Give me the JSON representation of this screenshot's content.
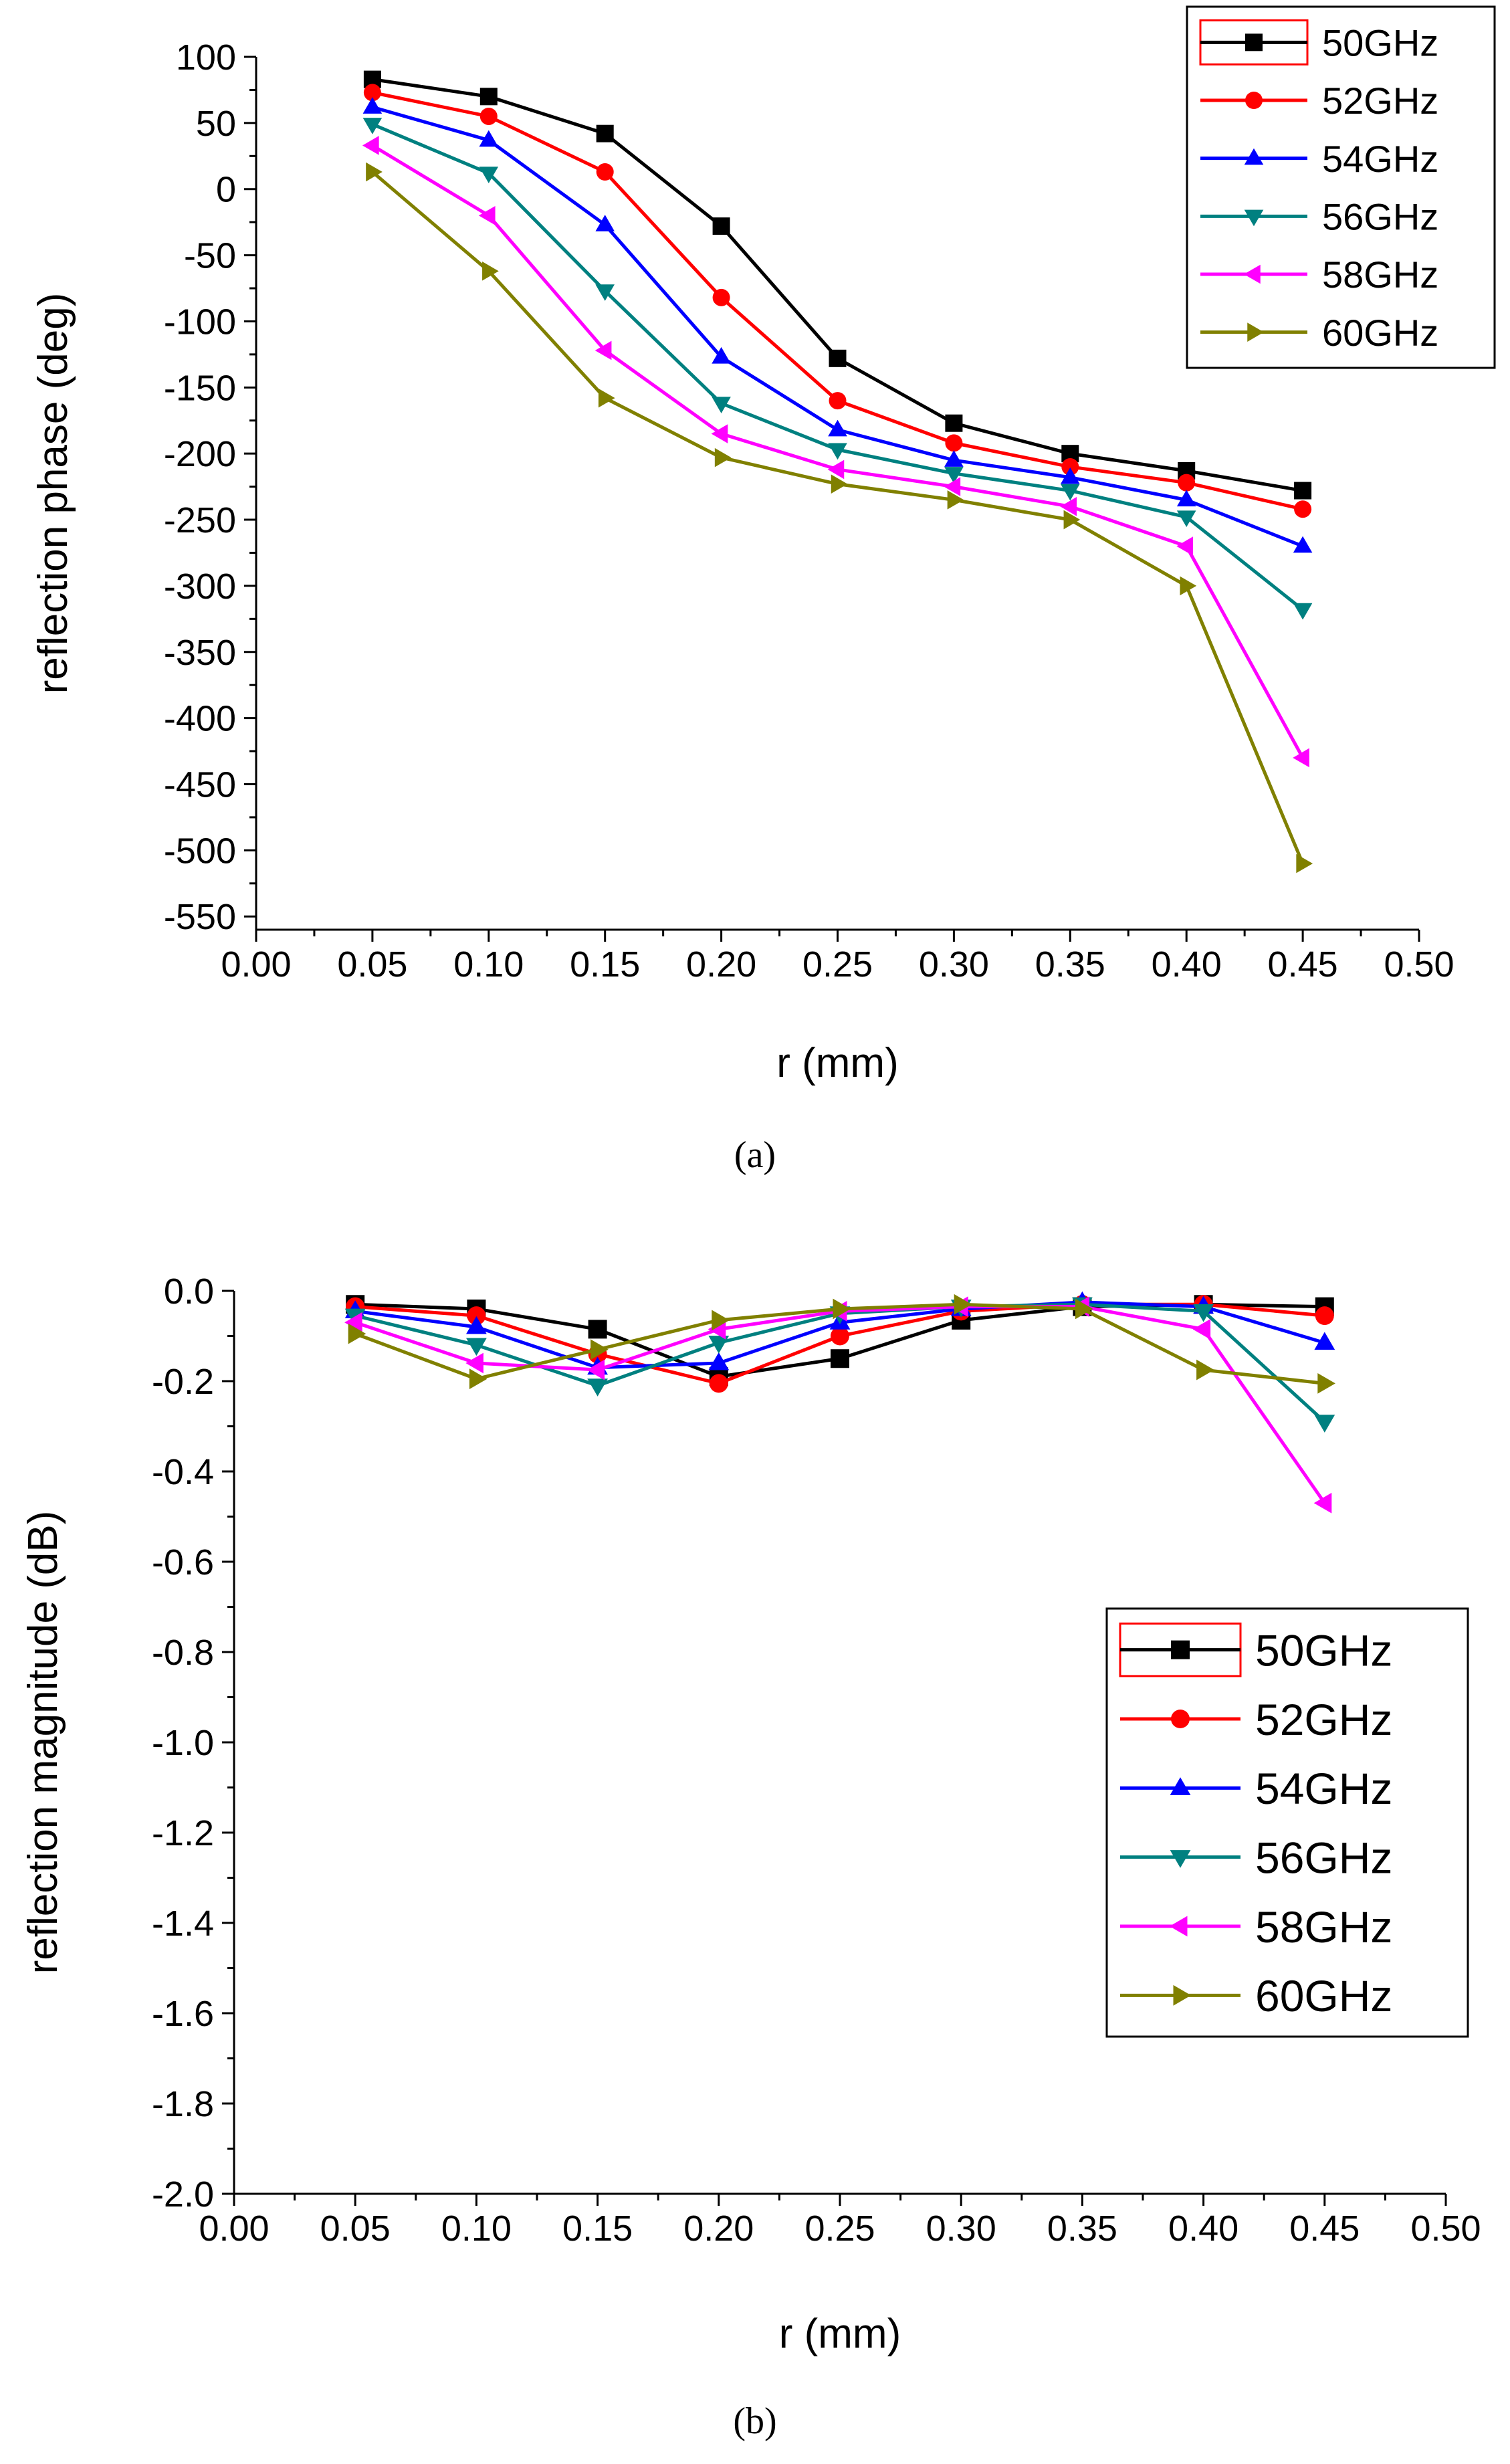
{
  "series_colors": {
    "50GHz": "#000000",
    "52GHz": "#ff0000",
    "54GHz": "#0000ff",
    "56GHz": "#008080",
    "58GHz": "#ff00ff",
    "60GHz": "#808000"
  },
  "chart_data": [
    {
      "type": "line",
      "caption": "(a)",
      "title": "",
      "xlabel": "r (mm)",
      "ylabel": "reflection phase (deg)",
      "xlim": [
        0.0,
        0.5
      ],
      "ylim": [
        -550,
        100
      ],
      "x_ticks": [
        "0.00",
        "0.05",
        "0.10",
        "0.15",
        "0.20",
        "0.25",
        "0.30",
        "0.35",
        "0.40",
        "0.45",
        "0.50"
      ],
      "y_ticks": [
        "100",
        "50",
        "0",
        "-50",
        "-100",
        "-150",
        "-200",
        "-250",
        "-300",
        "-350",
        "-400",
        "-450",
        "-500",
        "-550"
      ],
      "x_tick_values": [
        0.0,
        0.05,
        0.1,
        0.15,
        0.2,
        0.25,
        0.3,
        0.35,
        0.4,
        0.45,
        0.5
      ],
      "y_tick_values": [
        100,
        50,
        0,
        -50,
        -100,
        -150,
        -200,
        -250,
        -300,
        -350,
        -400,
        -450,
        -500,
        -550
      ],
      "grid": false,
      "legend_position": "top-right",
      "x": [
        0.05,
        0.1,
        0.15,
        0.2,
        0.25,
        0.3,
        0.35,
        0.4,
        0.45
      ],
      "series": [
        {
          "name": "50GHz",
          "marker": "square",
          "values": [
            83,
            70,
            42,
            -28,
            -128,
            -177,
            -200,
            -213,
            -228
          ]
        },
        {
          "name": "52GHz",
          "marker": "circle",
          "values": [
            73,
            55,
            13,
            -82,
            -160,
            -192,
            -210,
            -222,
            -242
          ]
        },
        {
          "name": "54GHz",
          "marker": "triangle-up",
          "values": [
            62,
            37,
            -27,
            -127,
            -182,
            -205,
            -218,
            -235,
            -270
          ]
        },
        {
          "name": "56GHz",
          "marker": "triangle-down",
          "values": [
            49,
            12,
            -77,
            -162,
            -197,
            -215,
            -228,
            -248,
            -318
          ]
        },
        {
          "name": "58GHz",
          "marker": "triangle-left",
          "values": [
            33,
            -20,
            -122,
            -185,
            -212,
            -225,
            -240,
            -270,
            -430
          ]
        },
        {
          "name": "60GHz",
          "marker": "triangle-right",
          "values": [
            13,
            -62,
            -158,
            -203,
            -223,
            -235,
            -250,
            -300,
            -510
          ]
        }
      ]
    },
    {
      "type": "line",
      "caption": "(b)",
      "title": "",
      "xlabel": "r (mm)",
      "ylabel": "reflection magnitude (dB)",
      "xlim": [
        0.0,
        0.5
      ],
      "ylim": [
        -2.0,
        0.0
      ],
      "x_ticks": [
        "0.00",
        "0.05",
        "0.10",
        "0.15",
        "0.20",
        "0.25",
        "0.30",
        "0.35",
        "0.40",
        "0.45",
        "0.50"
      ],
      "y_ticks": [
        "0.0",
        "-0.2",
        "-0.4",
        "-0.6",
        "-0.8",
        "-1.0",
        "-1.2",
        "-1.4",
        "-1.6",
        "-1.8",
        "-2.0"
      ],
      "x_tick_values": [
        0.0,
        0.05,
        0.1,
        0.15,
        0.2,
        0.25,
        0.3,
        0.35,
        0.4,
        0.45,
        0.5
      ],
      "y_tick_values": [
        0.0,
        -0.2,
        -0.4,
        -0.6,
        -0.8,
        -1.0,
        -1.2,
        -1.4,
        -1.6,
        -1.8,
        -2.0
      ],
      "grid": false,
      "legend_position": "right",
      "x": [
        0.05,
        0.1,
        0.15,
        0.2,
        0.25,
        0.3,
        0.35,
        0.4,
        0.45
      ],
      "series": [
        {
          "name": "50GHz",
          "marker": "square",
          "values": [
            -0.03,
            -0.04,
            -0.085,
            -0.19,
            -0.15,
            -0.065,
            -0.035,
            -0.03,
            -0.035
          ]
        },
        {
          "name": "52GHz",
          "marker": "circle",
          "values": [
            -0.035,
            -0.055,
            -0.14,
            -0.205,
            -0.1,
            -0.045,
            -0.03,
            -0.03,
            -0.055
          ]
        },
        {
          "name": "54GHz",
          "marker": "triangle-up",
          "values": [
            -0.045,
            -0.08,
            -0.17,
            -0.16,
            -0.07,
            -0.04,
            -0.025,
            -0.035,
            -0.115
          ]
        },
        {
          "name": "56GHz",
          "marker": "triangle-down",
          "values": [
            -0.055,
            -0.12,
            -0.21,
            -0.115,
            -0.05,
            -0.035,
            -0.03,
            -0.045,
            -0.29
          ]
        },
        {
          "name": "58GHz",
          "marker": "triangle-left",
          "values": [
            -0.07,
            -0.16,
            -0.175,
            -0.085,
            -0.045,
            -0.035,
            -0.035,
            -0.085,
            -0.47
          ]
        },
        {
          "name": "60GHz",
          "marker": "triangle-right",
          "values": [
            -0.095,
            -0.195,
            -0.13,
            -0.065,
            -0.04,
            -0.03,
            -0.04,
            -0.175,
            -0.205
          ]
        }
      ]
    }
  ]
}
